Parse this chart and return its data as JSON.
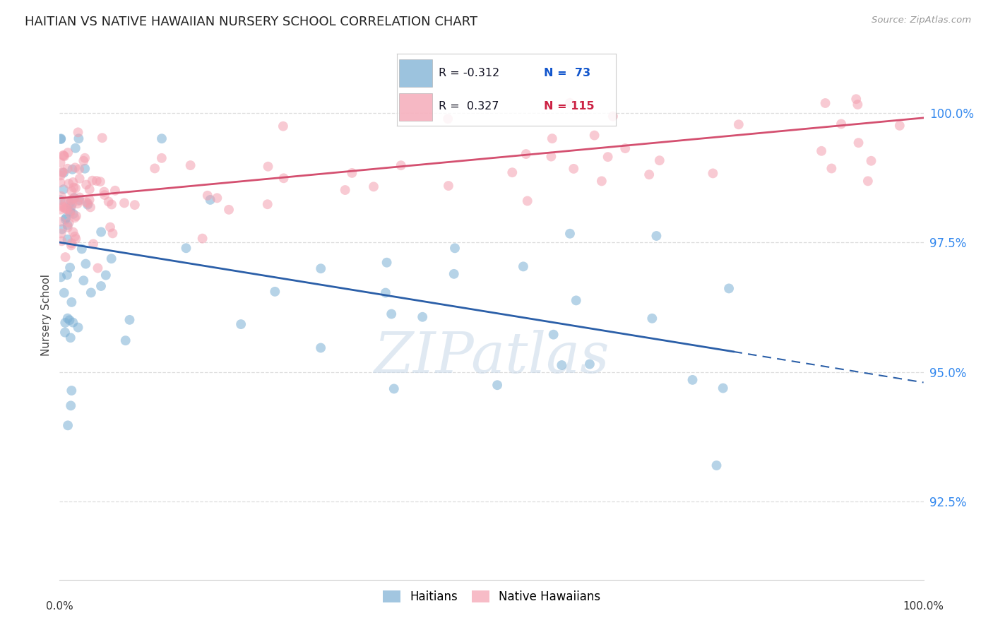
{
  "title": "HAITIAN VS NATIVE HAWAIIAN NURSERY SCHOOL CORRELATION CHART",
  "source": "Source: ZipAtlas.com",
  "ylabel": "Nursery School",
  "ytick_values": [
    92.5,
    95.0,
    97.5,
    100.0
  ],
  "xmin": 0.0,
  "xmax": 100.0,
  "ymin": 91.0,
  "ymax": 101.2,
  "blue_scatter_color": "#7BAFD4",
  "pink_scatter_color": "#F4A0B0",
  "blue_line_color": "#2B5FA8",
  "pink_line_color": "#D45070",
  "grid_color": "#DDDDDD",
  "grid_style": "--",
  "watermark_text": "ZIPatlas",
  "legend_blue_R": "R = -0.312",
  "legend_blue_N": "N =  73",
  "legend_pink_R": "R =  0.327",
  "legend_pink_N": "N = 115",
  "bottom_legend_labels": [
    "Haitians",
    "Native Hawaiians"
  ],
  "blue_line_start_y": 97.5,
  "blue_line_end_y": 94.8,
  "pink_line_start_y": 98.35,
  "pink_line_end_y": 99.9
}
